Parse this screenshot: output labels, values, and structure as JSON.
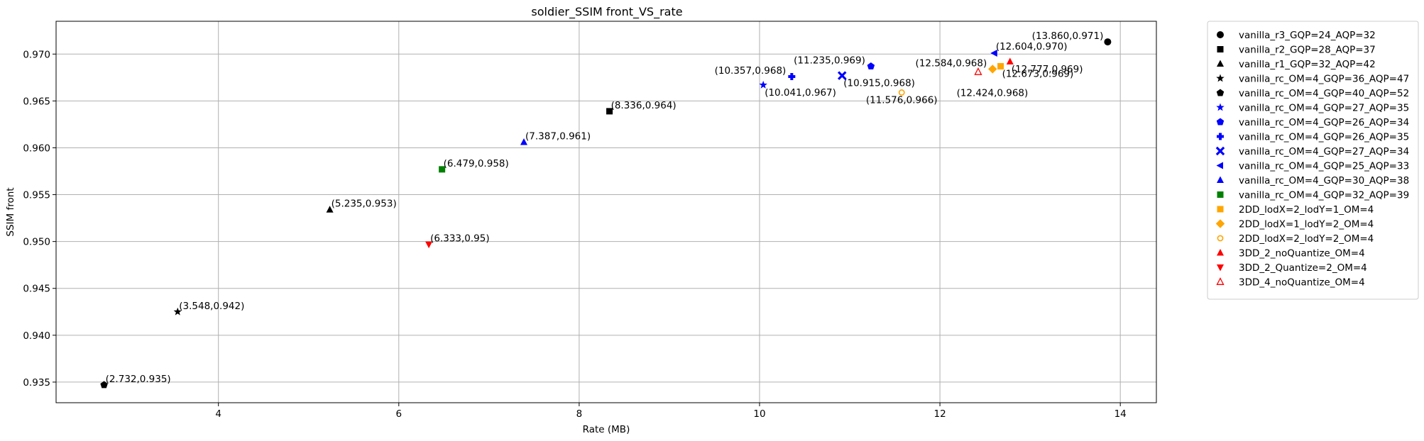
{
  "chart_data": {
    "type": "scatter",
    "title": "soldier_SSIM front_VS_rate",
    "xlabel": "Rate (MB)",
    "ylabel": "SSIM front",
    "xlim": [
      2.2,
      14.4
    ],
    "ylim": [
      0.9328,
      0.9735
    ],
    "xticks": [
      4,
      6,
      8,
      10,
      12,
      14
    ],
    "yticks": [
      0.935,
      0.94,
      0.945,
      0.95,
      0.955,
      0.96,
      0.965,
      0.97
    ],
    "ytick_labels": [
      "0.935",
      "0.940",
      "0.945",
      "0.950",
      "0.955",
      "0.960",
      "0.965",
      "0.970"
    ],
    "grid": true,
    "legend_position": "outside-right",
    "series": [
      {
        "name": "vanilla_r3_GQP=24_AQP=32",
        "marker": "circle",
        "color": "#000000",
        "x": 13.86,
        "y": 0.9713,
        "label": "(13.860,0.971)",
        "label_pos": "left"
      },
      {
        "name": "vanilla_r2_GQP=28_AQP=37",
        "marker": "square",
        "color": "#000000",
        "x": 8.336,
        "y": 0.9639,
        "label": "(8.336,0.964)",
        "label_pos": "right"
      },
      {
        "name": "vanilla_r1_GQP=32_AQP=42",
        "marker": "triangle-up",
        "color": "#000000",
        "x": 5.235,
        "y": 0.9534,
        "label": "(5.235,0.953)",
        "label_pos": "right"
      },
      {
        "name": "vanilla_rc_OM=4_GQP=36_AQP=47",
        "marker": "star",
        "color": "#000000",
        "x": 3.548,
        "y": 0.9425,
        "label": "(3.548,0.942)",
        "label_pos": "right"
      },
      {
        "name": "vanilla_rc_OM=4_GQP=40_AQP=52",
        "marker": "pentagon",
        "color": "#000000",
        "x": 2.732,
        "y": 0.9347,
        "label": "(2.732,0.935)",
        "label_pos": "right"
      },
      {
        "name": "vanilla_rc_OM=4_GQP=27_AQP=35",
        "marker": "star",
        "color": "#0000ff",
        "x": 10.041,
        "y": 0.9667,
        "label": "(10.041,0.967)",
        "label_pos": "below-right"
      },
      {
        "name": "vanilla_rc_OM=4_GQP=26_AQP=34",
        "marker": "pentagon",
        "color": "#0000ff",
        "x": 11.235,
        "y": 0.9687,
        "label": "(11.235,0.969)",
        "label_pos": "above-left"
      },
      {
        "name": "vanilla_rc_OM=4_GQP=26_AQP=35",
        "marker": "plus",
        "color": "#0000ff",
        "x": 10.357,
        "y": 0.9676,
        "label": "(10.357,0.968)",
        "label_pos": "above-left"
      },
      {
        "name": "vanilla_rc_OM=4_GQP=27_AQP=34",
        "marker": "x",
        "color": "#0000ff",
        "x": 10.915,
        "y": 0.9677,
        "label": "(10.915,0.968)",
        "label_pos": "below-right"
      },
      {
        "name": "vanilla_rc_OM=4_GQP=25_AQP=33",
        "marker": "triangle-left",
        "color": "#0000ff",
        "x": 12.604,
        "y": 0.9701,
        "label": "(12.604,0.970)",
        "label_pos": "above-right"
      },
      {
        "name": "vanilla_rc_OM=4_GQP=30_AQP=38",
        "marker": "triangle-up",
        "color": "#0000ff",
        "x": 7.387,
        "y": 0.9606,
        "label": "(7.387,0.961)",
        "label_pos": "right"
      },
      {
        "name": "vanilla_rc_OM=4_GQP=32_AQP=39",
        "marker": "square",
        "color": "#008000",
        "x": 6.479,
        "y": 0.9577,
        "label": "(6.479,0.958)",
        "label_pos": "right"
      },
      {
        "name": "2DD_lodX=2_lodY=1_OM=4",
        "marker": "square",
        "color": "#ffa500",
        "x": 12.673,
        "y": 0.9687,
        "label": "(12.673,0.969)",
        "label_pos": "below-right"
      },
      {
        "name": "2DD_lodX=1_lodY=2_OM=4",
        "marker": "diamond",
        "color": "#ffa500",
        "x": 12.584,
        "y": 0.9684,
        "label": "(12.584,0.968)",
        "label_pos": "above-left"
      },
      {
        "name": "2DD_lodX=2_lodY=2_OM=4",
        "marker": "circle-open",
        "color": "#ffa500",
        "x": 11.576,
        "y": 0.9659,
        "label": "(11.576,0.966)",
        "label_pos": "below"
      },
      {
        "name": "3DD_2_noQuantize_OM=4",
        "marker": "triangle-up",
        "color": "#ff0000",
        "x": 12.777,
        "y": 0.9692,
        "label": "(12.777,0.969)",
        "label_pos": "below-right"
      },
      {
        "name": "3DD_2_Quantize=2_OM=4",
        "marker": "triangle-down",
        "color": "#ff0000",
        "x": 6.333,
        "y": 0.9497,
        "label": "(6.333,0.95)",
        "label_pos": "right"
      },
      {
        "name": "3DD_4_noQuantize_OM=4",
        "marker": "triangle-up-open",
        "color": "#ff0000",
        "x": 12.424,
        "y": 0.9681,
        "label": "(12.424,0.968)",
        "label_pos": "below-left"
      }
    ]
  }
}
